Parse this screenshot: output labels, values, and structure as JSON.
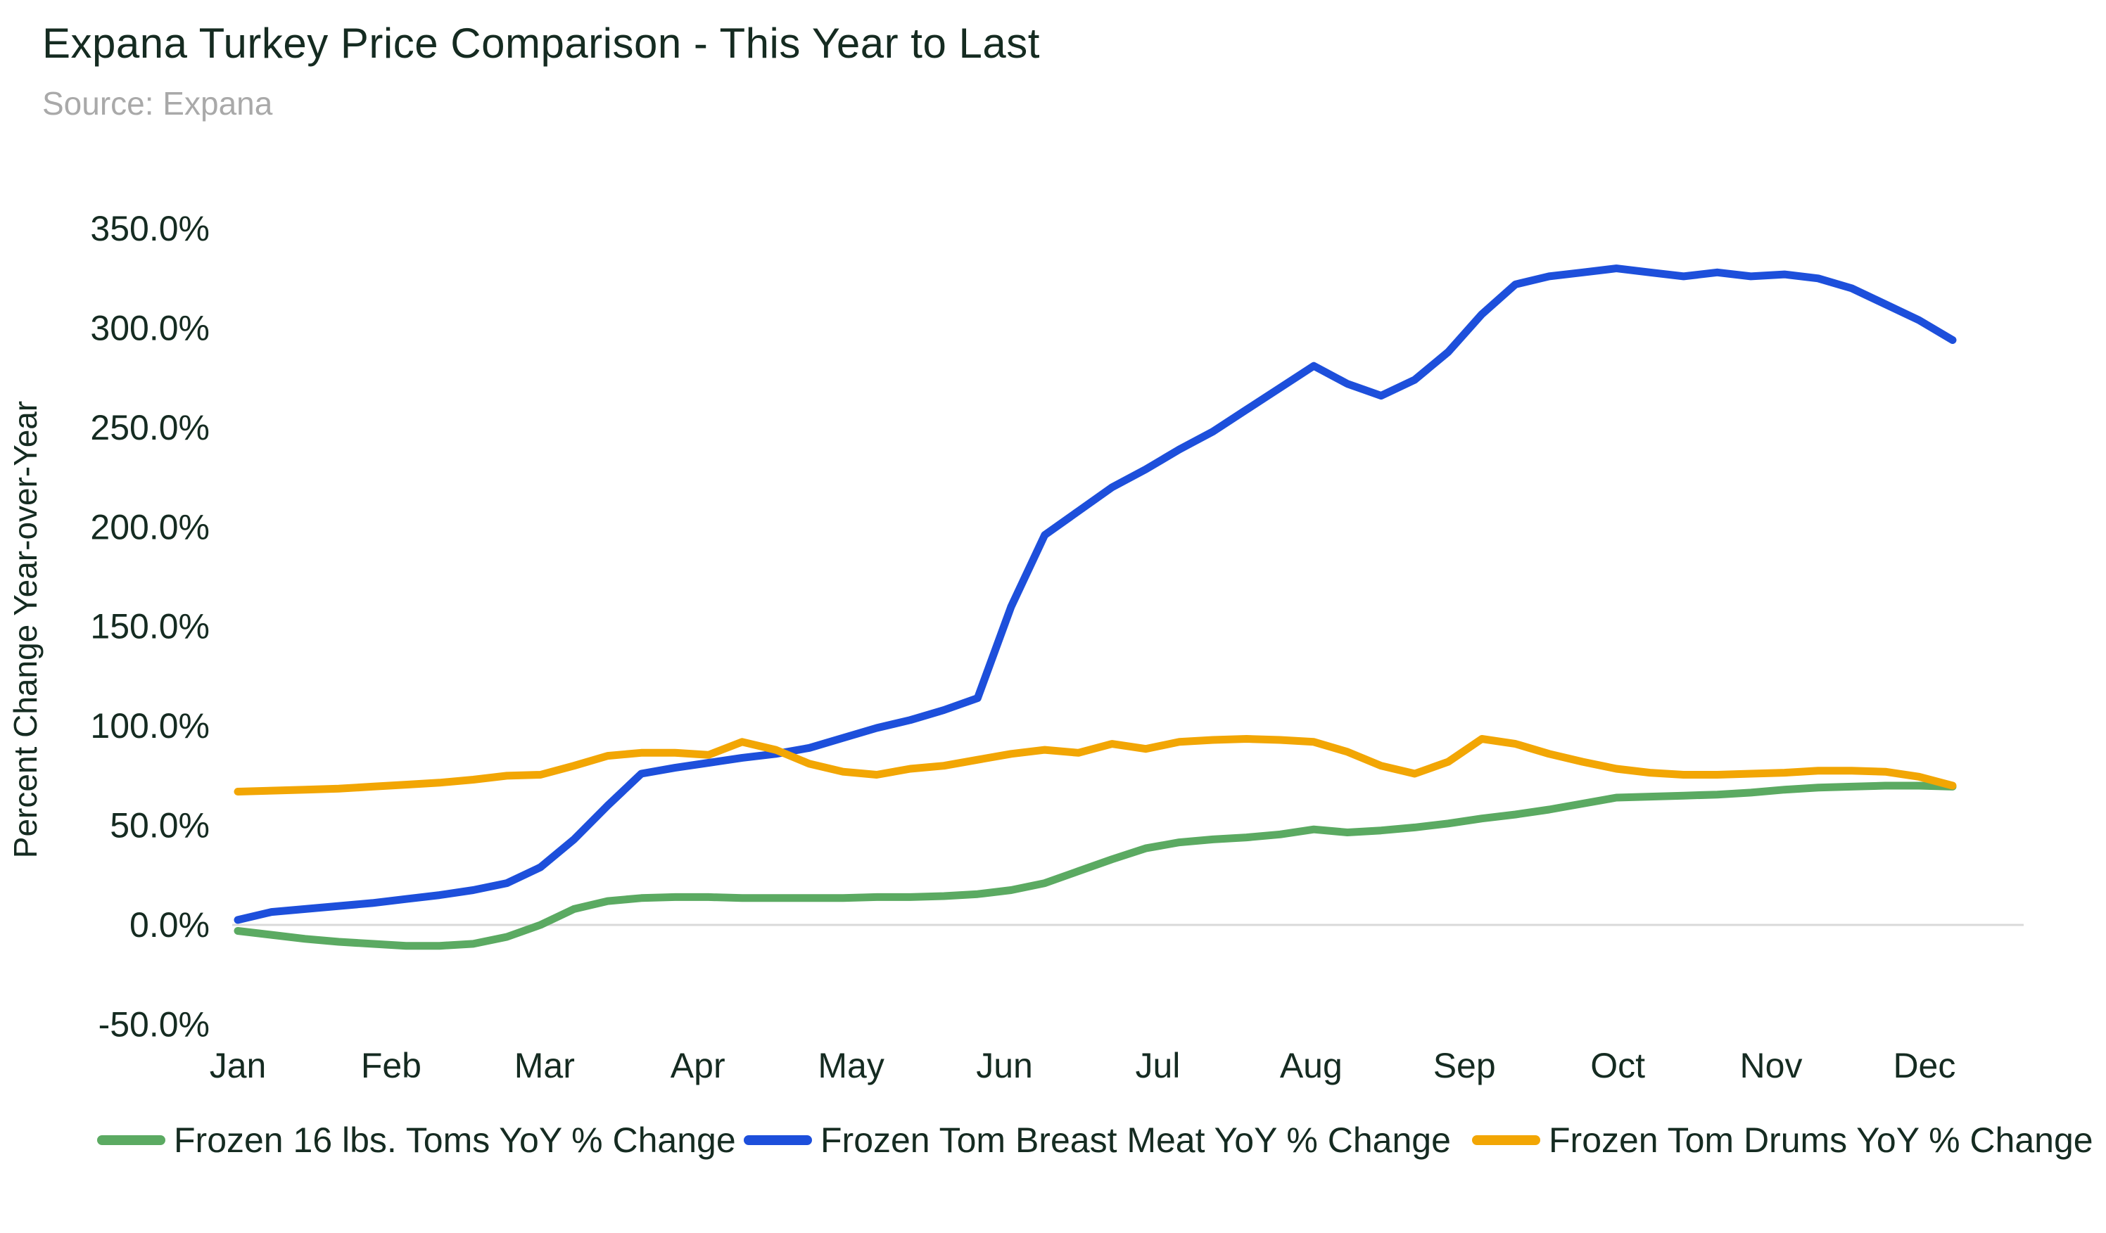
{
  "chart_data": {
    "type": "line",
    "title": "Expana Turkey Price Comparison - This Year to Last",
    "source": "Source: Expana",
    "ylabel": "Percent Change Year-over-Year",
    "x_tick_labels": [
      "Jan",
      "Feb",
      "Mar",
      "Apr",
      "May",
      "Jun",
      "Jul",
      "Aug",
      "Sep",
      "Oct",
      "Nov",
      "Dec"
    ],
    "y_tick_labels": [
      "350.0%",
      "300.0%",
      "250.0%",
      "200.0%",
      "150.0%",
      "100.0%",
      "50.0%",
      "0.0%",
      "-50.0%"
    ],
    "y_tick_values": [
      350,
      300,
      250,
      200,
      150,
      100,
      50,
      0,
      -50
    ],
    "ylim": [
      -50,
      350
    ],
    "y_tick_interval": 50,
    "x_resolution": "weekly points spanning Jan through end of Dec (52 points)",
    "grid": "zero line only",
    "legend_position": "bottom",
    "background_color": "#ffffff",
    "text_color": "#152b21",
    "source_color": "#a9a9a9",
    "zero_line_color": "#d9d9d9",
    "series": [
      {
        "name": "Frozen 16 lbs. Toms YoY % Change",
        "color": "#5baa62",
        "values": [
          -3,
          -5,
          -7,
          -8.5,
          -9.5,
          -10.5,
          -10.5,
          -9.5,
          -6,
          0,
          8,
          12,
          13.5,
          14,
          14,
          13.5,
          13.5,
          13.5,
          13.5,
          14,
          14,
          14.5,
          15.5,
          17.5,
          21,
          27,
          33,
          38.5,
          41.5,
          43,
          44,
          45.5,
          48,
          46.5,
          47.5,
          49,
          51,
          53.5,
          55.5,
          58,
          61,
          64,
          64.5,
          65,
          65.5,
          66.5,
          68,
          69,
          69.5,
          70,
          70,
          69.5
        ]
      },
      {
        "name": "Frozen Tom Breast Meat YoY % Change",
        "color": "#1d4fdb",
        "values": [
          2.5,
          6.5,
          8,
          9.5,
          11,
          13,
          15,
          17.5,
          21,
          29,
          43,
          60,
          76,
          79,
          81.5,
          84,
          86,
          89,
          94,
          99,
          103,
          108,
          114,
          160,
          196,
          208,
          220,
          229,
          239,
          248,
          259,
          270,
          281,
          272,
          266,
          274,
          288,
          307,
          322,
          326,
          328,
          330,
          328,
          326,
          328,
          326,
          327,
          325,
          320,
          312,
          304,
          294
        ]
      },
      {
        "name": "Frozen Tom Drums YoY % Change",
        "color": "#f2a604",
        "values": [
          67,
          67.5,
          68,
          68.5,
          69.5,
          70.5,
          71.5,
          73,
          75,
          75.5,
          80,
          85,
          86.5,
          86.5,
          85.5,
          92,
          88,
          81,
          77,
          75.5,
          78.5,
          80,
          83,
          86,
          88,
          86.5,
          91,
          88.5,
          92,
          93,
          93.5,
          93,
          92,
          87,
          80,
          76,
          82,
          93.5,
          91,
          86,
          82,
          78.5,
          76.5,
          75.5,
          75.5,
          76,
          76.5,
          77.5,
          77.5,
          77,
          74.5,
          70
        ]
      }
    ]
  }
}
